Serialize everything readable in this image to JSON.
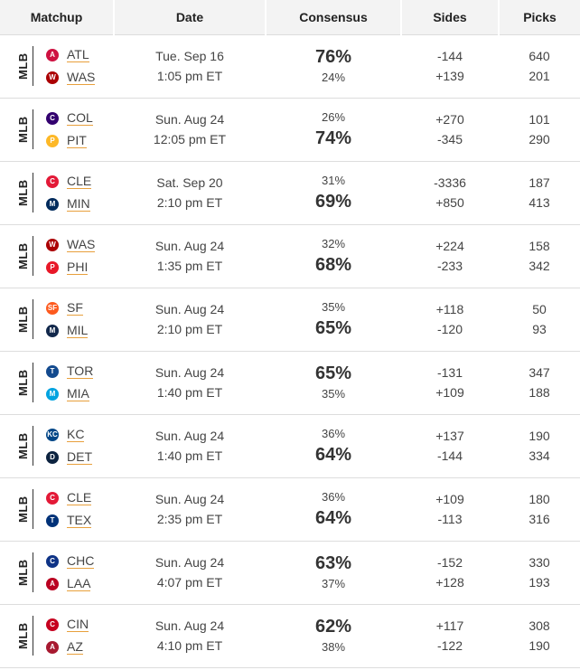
{
  "headers": {
    "matchup": "Matchup",
    "date": "Date",
    "consensus": "Consensus",
    "sides": "Sides",
    "picks": "Picks"
  },
  "rows": [
    {
      "league": "MLB",
      "away": {
        "abbr": "ATL",
        "logo_color": "#ce1141",
        "logo_text": "A"
      },
      "home": {
        "abbr": "WAS",
        "logo_color": "#ab0003",
        "logo_text": "W"
      },
      "date": "Tue. Sep 16",
      "time": "1:05 pm ET",
      "cons_top": "76%",
      "cons_bottom": "24%",
      "big_top": true,
      "side_top": "-144",
      "side_bottom": "+139",
      "picks_top": "640",
      "picks_bottom": "201"
    },
    {
      "league": "MLB",
      "away": {
        "abbr": "COL",
        "logo_color": "#33006f",
        "logo_text": "C"
      },
      "home": {
        "abbr": "PIT",
        "logo_color": "#fdb827",
        "logo_text": "P"
      },
      "date": "Sun. Aug 24",
      "time": "12:05 pm ET",
      "cons_top": "26%",
      "cons_bottom": "74%",
      "big_top": false,
      "side_top": "+270",
      "side_bottom": "-345",
      "picks_top": "101",
      "picks_bottom": "290"
    },
    {
      "league": "MLB",
      "away": {
        "abbr": "CLE",
        "logo_color": "#e31937",
        "logo_text": "C"
      },
      "home": {
        "abbr": "MIN",
        "logo_color": "#002b5c",
        "logo_text": "M"
      },
      "date": "Sat. Sep 20",
      "time": "2:10 pm ET",
      "cons_top": "31%",
      "cons_bottom": "69%",
      "big_top": false,
      "side_top": "-3336",
      "side_bottom": "+850",
      "picks_top": "187",
      "picks_bottom": "413"
    },
    {
      "league": "MLB",
      "away": {
        "abbr": "WAS",
        "logo_color": "#ab0003",
        "logo_text": "W"
      },
      "home": {
        "abbr": "PHI",
        "logo_color": "#e81828",
        "logo_text": "P"
      },
      "date": "Sun. Aug 24",
      "time": "1:35 pm ET",
      "cons_top": "32%",
      "cons_bottom": "68%",
      "big_top": false,
      "side_top": "+224",
      "side_bottom": "-233",
      "picks_top": "158",
      "picks_bottom": "342"
    },
    {
      "league": "MLB",
      "away": {
        "abbr": "SF",
        "logo_color": "#fd5a1e",
        "logo_text": "SF"
      },
      "home": {
        "abbr": "MIL",
        "logo_color": "#12284b",
        "logo_text": "M"
      },
      "date": "Sun. Aug 24",
      "time": "2:10 pm ET",
      "cons_top": "35%",
      "cons_bottom": "65%",
      "big_top": false,
      "side_top": "+118",
      "side_bottom": "-120",
      "picks_top": "50",
      "picks_bottom": "93"
    },
    {
      "league": "MLB",
      "away": {
        "abbr": "TOR",
        "logo_color": "#134a8e",
        "logo_text": "T"
      },
      "home": {
        "abbr": "MIA",
        "logo_color": "#00a3e0",
        "logo_text": "M"
      },
      "date": "Sun. Aug 24",
      "time": "1:40 pm ET",
      "cons_top": "65%",
      "cons_bottom": "35%",
      "big_top": true,
      "side_top": "-131",
      "side_bottom": "+109",
      "picks_top": "347",
      "picks_bottom": "188"
    },
    {
      "league": "MLB",
      "away": {
        "abbr": "KC",
        "logo_color": "#004687",
        "logo_text": "KC"
      },
      "home": {
        "abbr": "DET",
        "logo_color": "#0c2340",
        "logo_text": "D"
      },
      "date": "Sun. Aug 24",
      "time": "1:40 pm ET",
      "cons_top": "36%",
      "cons_bottom": "64%",
      "big_top": false,
      "side_top": "+137",
      "side_bottom": "-144",
      "picks_top": "190",
      "picks_bottom": "334"
    },
    {
      "league": "MLB",
      "away": {
        "abbr": "CLE",
        "logo_color": "#e31937",
        "logo_text": "C"
      },
      "home": {
        "abbr": "TEX",
        "logo_color": "#003278",
        "logo_text": "T"
      },
      "date": "Sun. Aug 24",
      "time": "2:35 pm ET",
      "cons_top": "36%",
      "cons_bottom": "64%",
      "big_top": false,
      "side_top": "+109",
      "side_bottom": "-113",
      "picks_top": "180",
      "picks_bottom": "316"
    },
    {
      "league": "MLB",
      "away": {
        "abbr": "CHC",
        "logo_color": "#0e3386",
        "logo_text": "C"
      },
      "home": {
        "abbr": "LAA",
        "logo_color": "#ba0021",
        "logo_text": "A"
      },
      "date": "Sun. Aug 24",
      "time": "4:07 pm ET",
      "cons_top": "63%",
      "cons_bottom": "37%",
      "big_top": true,
      "side_top": "-152",
      "side_bottom": "+128",
      "picks_top": "330",
      "picks_bottom": "193"
    },
    {
      "league": "MLB",
      "away": {
        "abbr": "CIN",
        "logo_color": "#c6011f",
        "logo_text": "C"
      },
      "home": {
        "abbr": "AZ",
        "logo_color": "#a71930",
        "logo_text": "A"
      },
      "date": "Sun. Aug 24",
      "time": "4:10 pm ET",
      "cons_top": "62%",
      "cons_bottom": "38%",
      "big_top": true,
      "side_top": "+117",
      "side_bottom": "-122",
      "picks_top": "308",
      "picks_bottom": "190"
    }
  ]
}
